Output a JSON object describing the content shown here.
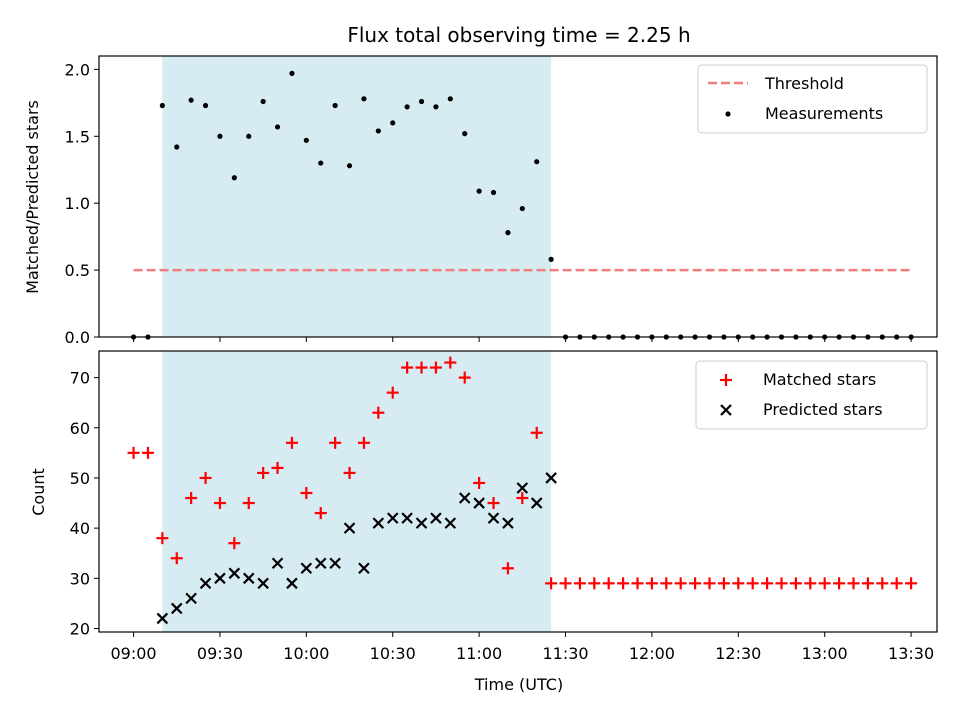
{
  "chart_data": {
    "type": "scatter",
    "title": "Flux total observing time = 2.25 h",
    "xlabel": "Time (UTC)",
    "x_ticks": [
      "09:00",
      "09:30",
      "10:00",
      "10:30",
      "11:00",
      "11:30",
      "12:00",
      "12:30",
      "13:00",
      "13:30"
    ],
    "x_tick_minutes": [
      540,
      570,
      600,
      630,
      660,
      690,
      720,
      750,
      780,
      810
    ],
    "xlim_minutes": [
      528,
      819
    ],
    "highlight_span_minutes": [
      550,
      685
    ],
    "colors": {
      "threshold": "#f08080",
      "span": "#add8e6",
      "matched": "#ff0000",
      "predicted": "#000000",
      "measurement": "#000000"
    },
    "top": {
      "ylabel": "Matched/Predicted stars",
      "ylim": [
        0,
        2.1
      ],
      "yticks": [
        "0.0",
        "0.5",
        "1.0",
        "1.5",
        "2.0"
      ],
      "ytick_values": [
        0,
        0.5,
        1.0,
        1.5,
        2.0
      ],
      "threshold": {
        "name": "Threshold",
        "value": 0.5,
        "x_range": [
          540,
          810
        ]
      },
      "measurements_name": "Measurements",
      "x": [
        540,
        545,
        550,
        555,
        560,
        565,
        570,
        575,
        580,
        585,
        590,
        595,
        600,
        605,
        610,
        615,
        620,
        625,
        630,
        635,
        640,
        645,
        650,
        655,
        660,
        665,
        670,
        675,
        680,
        685,
        690,
        695,
        700,
        705,
        710,
        715,
        720,
        725,
        730,
        735,
        740,
        745,
        750,
        755,
        760,
        765,
        770,
        775,
        780,
        785,
        790,
        795,
        800,
        805,
        810
      ],
      "y": [
        0,
        0,
        1.73,
        1.42,
        1.77,
        1.73,
        1.5,
        1.19,
        1.5,
        1.76,
        1.57,
        1.97,
        1.47,
        1.3,
        1.73,
        1.28,
        1.78,
        1.54,
        1.6,
        1.72,
        1.76,
        1.72,
        1.78,
        1.52,
        1.09,
        1.08,
        0.78,
        0.96,
        1.31,
        0.58,
        0,
        0,
        0,
        0,
        0,
        0,
        0,
        0,
        0,
        0,
        0,
        0,
        0,
        0,
        0,
        0,
        0,
        0,
        0,
        0,
        0,
        0,
        0,
        0,
        0
      ]
    },
    "bottom": {
      "ylabel": "Count",
      "ylim": [
        19.3,
        75.3
      ],
      "yticks": [
        "20",
        "30",
        "40",
        "50",
        "60",
        "70"
      ],
      "ytick_values": [
        20,
        30,
        40,
        50,
        60,
        70
      ],
      "series": [
        {
          "name": "Matched stars",
          "x": [
            540,
            545,
            550,
            555,
            560,
            565,
            570,
            575,
            580,
            585,
            590,
            595,
            600,
            605,
            610,
            615,
            620,
            625,
            630,
            635,
            640,
            645,
            650,
            655,
            660,
            665,
            670,
            675,
            680,
            685,
            690,
            695,
            700,
            705,
            710,
            715,
            720,
            725,
            730,
            735,
            740,
            745,
            750,
            755,
            760,
            765,
            770,
            775,
            780,
            785,
            790,
            795,
            800,
            805,
            810
          ],
          "values": [
            55,
            55,
            38,
            34,
            46,
            50,
            45,
            37,
            45,
            51,
            52,
            57,
            47,
            43,
            57,
            51,
            57,
            63,
            67,
            72,
            72,
            72,
            73,
            70,
            49,
            45,
            32,
            46,
            59,
            29,
            29,
            29,
            29,
            29,
            29,
            29,
            29,
            29,
            29,
            29,
            29,
            29,
            29,
            29,
            29,
            29,
            29,
            29,
            29,
            29,
            29,
            29,
            29,
            29,
            29
          ]
        },
        {
          "name": "Predicted stars",
          "x": [
            550,
            555,
            560,
            565,
            570,
            575,
            580,
            585,
            590,
            595,
            600,
            605,
            610,
            615,
            620,
            625,
            630,
            635,
            640,
            645,
            650,
            655,
            660,
            665,
            670,
            675,
            680,
            685
          ],
          "values": [
            22,
            24,
            26,
            29,
            30,
            31,
            30,
            29,
            33,
            29,
            32,
            33,
            33,
            40,
            32,
            41,
            42,
            42,
            41,
            42,
            41,
            46,
            45,
            42,
            41,
            48,
            45,
            50
          ]
        }
      ]
    }
  }
}
